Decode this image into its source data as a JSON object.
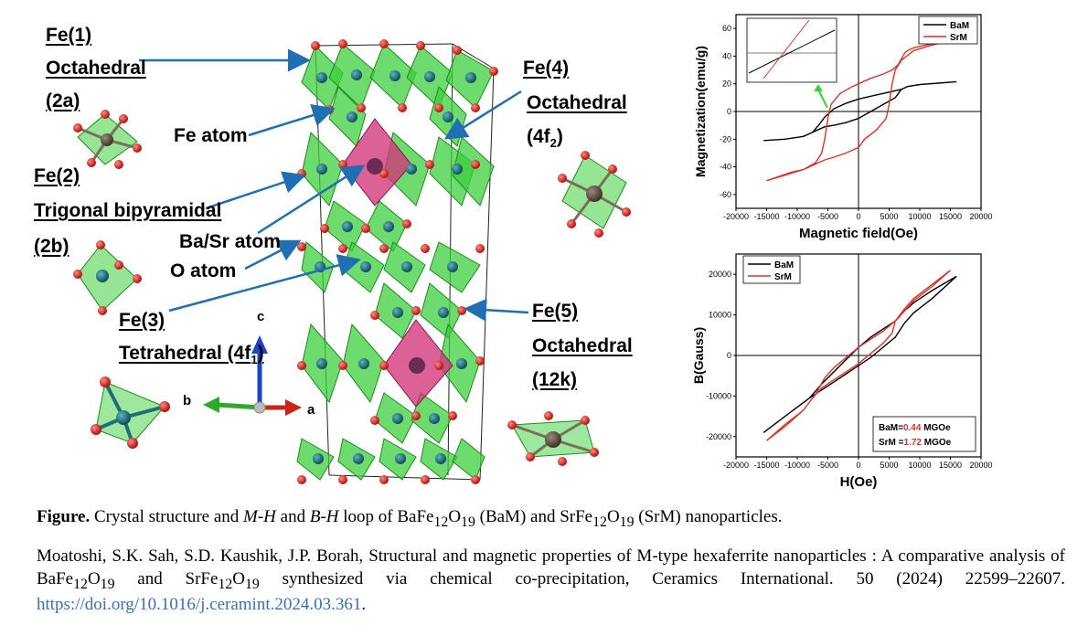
{
  "labels": {
    "fe1": [
      "Fe(1)",
      "Octahedral",
      "(2a)"
    ],
    "fe2": [
      "Fe(2)",
      "Trigonal bipyramidal",
      "(2b)"
    ],
    "fe3": [
      "Fe(3)",
      "Tetrahedral (4f",
      "1",
      ")"
    ],
    "fe4": [
      "Fe(4)",
      "Octahedral",
      "(4f",
      "2",
      ")"
    ],
    "fe5": [
      "Fe(5)",
      "Octahedral",
      "(12k)"
    ],
    "fe_atom": "Fe atom",
    "basr_atom": "Ba/Sr atom",
    "o_atom": "O atom",
    "axis_c": "c",
    "axis_a": "a",
    "axis_b": "b"
  },
  "caption": {
    "lead": "Figure.",
    "t1": "Crystal structure and ",
    "mh": "M-H",
    "t2": " and ",
    "bh": "B-H",
    "t3": " loop of BaFe",
    "s12a": "12",
    "t4": "O",
    "s19a": "19",
    "t5": " (BaM) and SrFe",
    "s12b": "12",
    "t6": "O",
    "s19b": "19",
    "t7": " (SrM) nanoparticles."
  },
  "citation": {
    "t1": "Moatoshi, S.K. Sah, S.D. Kaushik, J.P. Borah, Structural and magnetic properties of M-type hexaferrite nanoparticles : A comparative analysis of BaFe",
    "s12a": "12",
    "t2": "O",
    "s19a": "19",
    "t3": " and SrFe",
    "s12b": "12",
    "t4": "O",
    "s19b": "19",
    "t5": " synthesized via chemical co-precipitation, Ceramics International. 50 (2024) 22599–22607. ",
    "link": "https://doi.org/10.1016/j.ceramint.2024.03.361",
    "t6": "."
  },
  "colors": {
    "BaM": "#000000",
    "SrM": "#d9342b",
    "link": "#3a6fb5",
    "arrow": "#1f6fb2",
    "octa": "#3ecf3e",
    "pink": "#d1357a",
    "oxygen": "#d8201b",
    "fe": "#1b6e7c"
  },
  "chart_data": [
    {
      "type": "line",
      "ylabel": "Magnetization(emu/g)",
      "xlabel": "Magnetic field(Oe)",
      "xlim": [
        -20000,
        20000
      ],
      "ylim": [
        -70,
        70
      ],
      "xticks": [
        -20000,
        -15000,
        -10000,
        -5000,
        0,
        5000,
        10000,
        15000,
        20000
      ],
      "yticks": [
        -60,
        -40,
        -20,
        0,
        20,
        40,
        60
      ],
      "legend_position": "top-right",
      "series": [
        {
          "name": "BaM",
          "color": "#000000",
          "x": [
            -15500,
            -12000,
            -9000,
            -7500,
            -6500,
            -5500,
            -4000,
            -2000,
            0,
            2000,
            4000,
            6000,
            7000,
            7500,
            8000,
            10000,
            13000,
            16000,
            13000,
            10000,
            8000,
            7000,
            6000,
            4000,
            2000,
            0,
            -2000,
            -4000,
            -5500,
            -6500,
            -7500,
            -9000,
            -12000,
            -15500
          ],
          "y": [
            -21,
            -20,
            -18,
            -15,
            -10,
            -4,
            2,
            6,
            9,
            11,
            13,
            15,
            16,
            17,
            18,
            19.5,
            20.5,
            21.5,
            20.5,
            19.5,
            18,
            16,
            10,
            5,
            0,
            -5,
            -8,
            -10,
            -11,
            -13,
            -15,
            -18,
            -20,
            -21
          ]
        },
        {
          "name": "SrM",
          "color": "#d9342b",
          "x": [
            -15000,
            -12000,
            -9000,
            -7000,
            -6000,
            -5500,
            -5000,
            -4500,
            -3000,
            -1000,
            0,
            2000,
            4000,
            5500,
            6500,
            7000,
            7500,
            8000,
            9000,
            11000,
            13000,
            15000,
            12000,
            9000,
            7000,
            6000,
            5500,
            5000,
            4500,
            3000,
            1000,
            0,
            -2000,
            -4000,
            -5500,
            -6500,
            -7000,
            -8000,
            -9000,
            -11000,
            -13000,
            -15000
          ],
          "y": [
            -50,
            -46,
            -42,
            -37,
            -30,
            -20,
            -5,
            5,
            13,
            18,
            20,
            24,
            27,
            30,
            34,
            38,
            42,
            44,
            46,
            48,
            50,
            51,
            48,
            44,
            37,
            30,
            20,
            5,
            -5,
            -13,
            -20,
            -26,
            -30,
            -33,
            -35,
            -37,
            -38,
            -40,
            -42,
            -44,
            -47,
            -50
          ]
        }
      ],
      "inset": {
        "series": [
          "BaM",
          "SrM"
        ],
        "pointer": "arrow"
      }
    },
    {
      "type": "line",
      "ylabel": "B(Gauss)",
      "xlabel": "H(Oe)",
      "xlim": [
        -20000,
        20000
      ],
      "ylim": [
        -25000,
        25000
      ],
      "xticks": [
        -20000,
        -15000,
        -10000,
        -5000,
        0,
        5000,
        10000,
        15000,
        20000
      ],
      "yticks": [
        -20000,
        -10000,
        0,
        10000,
        20000
      ],
      "legend_position": "top-left",
      "annotation": {
        "BaM_label": "BaM=",
        "BaM_value": "0.44",
        "SrM_label": "SrM =",
        "SrM_value": "1.72",
        "unit": " MGOe"
      },
      "series": [
        {
          "name": "BaM",
          "color": "#000000",
          "x": [
            -15500,
            -12000,
            -8000,
            -6000,
            -4000,
            -2000,
            0,
            2000,
            4000,
            6000,
            7500,
            9000,
            12000,
            16000,
            12000,
            9000,
            7500,
            6000,
            4000,
            2000,
            0,
            -2000,
            -4000,
            -6000,
            -8000,
            -12000,
            -15500
          ],
          "y": [
            -19000,
            -15000,
            -10500,
            -7000,
            -4000,
            -1000,
            2000,
            4500,
            6500,
            8500,
            11000,
            13000,
            16000,
            19500,
            14000,
            10500,
            8000,
            4500,
            2000,
            -500,
            -2500,
            -4500,
            -6500,
            -8500,
            -10500,
            -15000,
            -19000
          ]
        },
        {
          "name": "SrM",
          "color": "#d9342b",
          "x": [
            -15000,
            -12000,
            -9000,
            -7000,
            -5500,
            -4000,
            -2000,
            0,
            2000,
            4000,
            6000,
            7500,
            9000,
            12000,
            15000,
            12000,
            9000,
            7500,
            6000,
            5500,
            4000,
            2000,
            0,
            -2000,
            -4000,
            -6000,
            -7500,
            -9000,
            -12000,
            -15000
          ],
          "y": [
            -21000,
            -17500,
            -13500,
            -9500,
            -5500,
            -3000,
            -500,
            2000,
            4000,
            6000,
            8500,
            11000,
            13500,
            17000,
            21000,
            17500,
            14000,
            11500,
            8500,
            5500,
            3000,
            500,
            -2000,
            -4000,
            -6000,
            -8000,
            -10500,
            -13500,
            -17000,
            -21000
          ]
        }
      ]
    }
  ]
}
